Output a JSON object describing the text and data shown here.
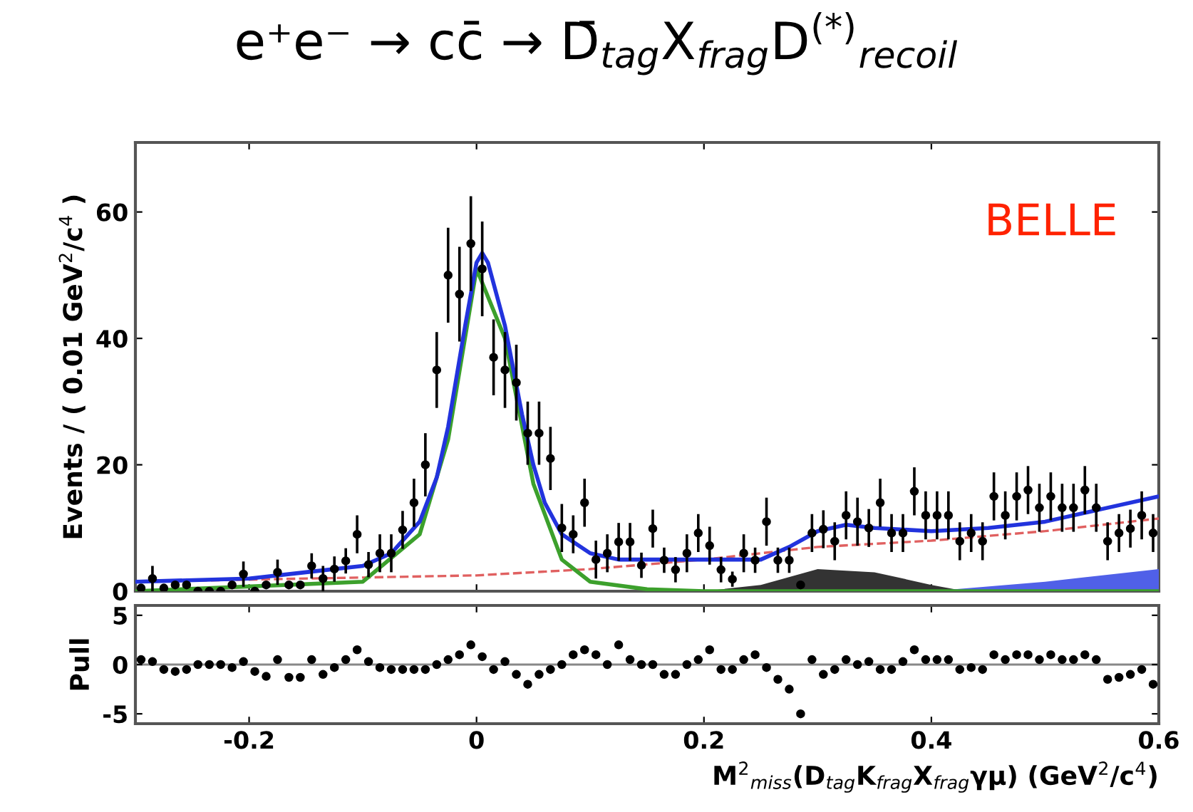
{
  "chart_data": [
    {
      "type": "scatter",
      "title": "e⁺e⁻ → cc̄ → D̄$_{tag}$X$_{frag}$D$^{(*)}$$_{recoil}$",
      "ylabel": "Events / ( 0.01 GeV$^{2}$/c$^{4}$ )",
      "xlim": [
        -0.3,
        0.6
      ],
      "xticks": [
        -0.2,
        0,
        0.2,
        0.4,
        0.6
      ],
      "ylim": [
        0,
        71
      ],
      "yticks": [
        0,
        20,
        40,
        60
      ],
      "tick_labels": "y",
      "annotations": [
        "BELLE"
      ],
      "series": [
        {
          "type": "area",
          "color": "#333333",
          "x": [
            0.2,
            0.25,
            0.3,
            0.35,
            0.4,
            0.43
          ],
          "values": [
            0,
            1,
            3.5,
            3,
            1,
            0
          ]
        },
        {
          "type": "area",
          "color": "#5060e8",
          "x": [
            0.4,
            0.5,
            0.6
          ],
          "values": [
            0,
            1.5,
            3.5
          ]
        },
        {
          "type": "line",
          "color": "#e06060",
          "line_style": "dashed",
          "x": [
            -0.3,
            0,
            0.1,
            0.2,
            0.3,
            0.4,
            0.5,
            0.6
          ],
          "values": [
            1.5,
            2.5,
            3.5,
            5,
            7,
            8,
            9.5,
            11.5
          ]
        },
        {
          "type": "line",
          "color": "#3ca02c",
          "line_style": "solid",
          "x": [
            -0.3,
            -0.1,
            -0.05,
            -0.025,
            0,
            0.025,
            0.05,
            0.075,
            0.1,
            0.15,
            0.2,
            0.6
          ],
          "values": [
            0,
            1.5,
            9,
            24,
            51,
            40,
            17,
            5,
            1.5,
            0.3,
            0,
            0
          ]
        },
        {
          "type": "line",
          "color": "#2233dd",
          "line_style": "solid",
          "x": [
            -0.3,
            -0.2,
            -0.15,
            -0.1,
            -0.075,
            -0.05,
            -0.035,
            -0.025,
            -0.01,
            0,
            0.005,
            0.01,
            0.025,
            0.04,
            0.05,
            0.06,
            0.075,
            0.1,
            0.125,
            0.15,
            0.2,
            0.25,
            0.275,
            0.3,
            0.325,
            0.35,
            0.4,
            0.45,
            0.5,
            0.55,
            0.6
          ],
          "values": [
            1.5,
            2,
            3,
            4,
            6,
            11,
            18,
            26,
            42,
            52,
            53.5,
            52,
            42,
            28,
            20,
            14,
            9,
            6,
            5,
            5,
            5,
            5,
            7,
            9.5,
            10.5,
            10,
            9.5,
            10,
            11,
            13,
            15
          ]
        },
        {
          "color": "#000000",
          "marker": "circle",
          "x": [
            -0.295,
            -0.285,
            -0.275,
            -0.265,
            -0.255,
            -0.245,
            -0.235,
            -0.225,
            -0.215,
            -0.205,
            -0.195,
            -0.185,
            -0.175,
            -0.165,
            -0.155,
            -0.145,
            -0.135,
            -0.125,
            -0.115,
            -0.105,
            -0.095,
            -0.085,
            -0.075,
            -0.065,
            -0.055,
            -0.045,
            -0.035,
            -0.025,
            -0.015,
            -0.005,
            0.005,
            0.015,
            0.025,
            0.035,
            0.045,
            0.055,
            0.065,
            0.075,
            0.085,
            0.095,
            0.105,
            0.115,
            0.125,
            0.135,
            0.145,
            0.155,
            0.165,
            0.175,
            0.185,
            0.195,
            0.205,
            0.215,
            0.225,
            0.235,
            0.245,
            0.255,
            0.265,
            0.275,
            0.285,
            0.295,
            0.305,
            0.315,
            0.325,
            0.335,
            0.345,
            0.355,
            0.365,
            0.375,
            0.385,
            0.395,
            0.405,
            0.415,
            0.425,
            0.435,
            0.445,
            0.455,
            0.465,
            0.475,
            0.485,
            0.495,
            0.505,
            0.515,
            0.525,
            0.535,
            0.545,
            0.555,
            0.565,
            0.575,
            0.585,
            0.595
          ],
          "values": [
            0.5,
            2,
            0.5,
            1,
            1,
            0,
            0,
            0,
            1,
            2.7,
            0,
            1,
            3,
            1,
            1,
            4,
            2,
            3.5,
            4.8,
            9,
            4.2,
            6,
            6,
            9.7,
            14,
            20,
            35,
            50,
            47,
            55,
            51,
            37,
            35,
            33,
            25,
            25,
            21,
            10,
            9,
            14,
            5,
            6,
            7.8,
            7.8,
            4.1,
            9.9,
            4.9,
            3.4,
            6,
            9.2,
            7.2,
            3.4,
            1.9,
            6,
            4.9,
            11,
            4.9,
            4.9,
            1,
            9.2,
            9.8,
            7.9,
            12,
            11,
            10,
            14,
            9.2,
            9.2,
            15.8,
            12,
            12,
            12,
            7.9,
            9.2,
            7.9,
            15,
            12,
            15,
            16,
            13.2,
            15,
            13.2,
            13.2,
            16,
            13.2,
            7.9,
            9.2,
            9.9,
            12,
            9.2
          ],
          "errors": [
            null,
            2,
            null,
            null,
            null,
            null,
            null,
            null,
            null,
            2,
            null,
            null,
            2,
            null,
            null,
            2,
            2,
            2,
            2,
            3,
            2,
            3,
            3,
            3,
            3.8,
            5,
            6,
            7.5,
            7.5,
            7.5,
            7.5,
            6,
            6,
            6,
            5,
            5,
            5,
            3.8,
            3,
            3.8,
            3,
            3,
            3,
            3,
            2,
            3,
            2,
            2,
            3,
            3,
            3,
            2,
            1.2,
            3,
            2,
            3.8,
            2,
            2,
            null,
            3,
            3,
            3,
            3.8,
            3.8,
            3,
            3.8,
            3,
            3,
            3.8,
            3.8,
            3.8,
            3.8,
            3,
            3,
            3,
            3.8,
            3.8,
            3.8,
            3.8,
            3.8,
            3.8,
            3.8,
            3.8,
            3.8,
            3.8,
            3,
            3,
            3,
            3.8,
            3
          ]
        }
      ]
    },
    {
      "type": "scatter",
      "xlabel": "M$^{2}$$_{miss}$(D$_{tag}$K$_{frag}$X$_{frag}$γμ) (GeV$^{2}$/c$^{4}$)",
      "ylabel": "Pull",
      "xlim": [
        -0.3,
        0.6
      ],
      "xticks": [
        -0.2,
        0,
        0.2,
        0.4,
        0.6
      ],
      "ylim": [
        -6,
        6
      ],
      "yticks": [
        -5,
        0,
        5
      ],
      "ref_lines": [
        {
          "axis": "y",
          "value": 0,
          "color": "#888888"
        }
      ],
      "series": [
        {
          "color": "#000000",
          "marker": "circle",
          "x": [
            -0.295,
            -0.285,
            -0.275,
            -0.265,
            -0.255,
            -0.245,
            -0.235,
            -0.225,
            -0.215,
            -0.205,
            -0.195,
            -0.185,
            -0.175,
            -0.165,
            -0.155,
            -0.145,
            -0.135,
            -0.125,
            -0.115,
            -0.105,
            -0.095,
            -0.085,
            -0.075,
            -0.065,
            -0.055,
            -0.045,
            -0.035,
            -0.025,
            -0.015,
            -0.005,
            0.005,
            0.015,
            0.025,
            0.035,
            0.045,
            0.055,
            0.065,
            0.075,
            0.085,
            0.095,
            0.105,
            0.115,
            0.125,
            0.135,
            0.145,
            0.155,
            0.165,
            0.175,
            0.185,
            0.195,
            0.205,
            0.215,
            0.225,
            0.235,
            0.245,
            0.255,
            0.265,
            0.275,
            0.285,
            0.295,
            0.305,
            0.315,
            0.325,
            0.335,
            0.345,
            0.355,
            0.365,
            0.375,
            0.385,
            0.395,
            0.405,
            0.415,
            0.425,
            0.435,
            0.445,
            0.455,
            0.465,
            0.475,
            0.485,
            0.495,
            0.505,
            0.515,
            0.525,
            0.535,
            0.545,
            0.555,
            0.565,
            0.575,
            0.585,
            0.595
          ],
          "values": [
            0.5,
            0.3,
            -0.5,
            -0.7,
            -0.5,
            0,
            0,
            0,
            -0.3,
            0.3,
            -0.7,
            -1.2,
            0.5,
            -1.3,
            -1.3,
            0.5,
            -1,
            -0.3,
            0.5,
            1.5,
            0.3,
            -0.3,
            -0.5,
            -0.5,
            -0.5,
            -0.5,
            0,
            0.5,
            1,
            2,
            0.8,
            -0.5,
            0.3,
            -1,
            -2,
            -1,
            -0.5,
            0,
            1,
            1.5,
            1,
            0,
            2,
            0.5,
            0,
            0,
            -1,
            -1,
            0,
            0.5,
            1.5,
            -0.5,
            -0.5,
            0.5,
            1,
            -0.3,
            -1.5,
            -2.5,
            -5,
            0.5,
            -1,
            -0.5,
            0.5,
            0,
            0.3,
            -0.5,
            -0.5,
            0.3,
            1.5,
            0.5,
            0.5,
            0.5,
            -0.5,
            -0.3,
            -0.5,
            1,
            0.5,
            1,
            1,
            0.5,
            1,
            0.5,
            0.5,
            1,
            0.5,
            -1.5,
            -1.3,
            -1,
            -0.5,
            -2
          ]
        }
      ]
    }
  ]
}
